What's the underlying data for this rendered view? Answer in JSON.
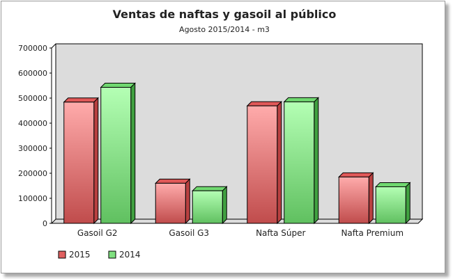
{
  "chart_data": {
    "type": "bar",
    "title": "Ventas de naftas y gasoil al público",
    "subtitle": "Agosto 2015/2014 - m3",
    "xlabel": "",
    "ylabel": "",
    "ylim": [
      0,
      700000
    ],
    "yticks": [
      "0",
      "100000",
      "200000",
      "300000",
      "400000",
      "500000",
      "600000",
      "700000"
    ],
    "categories": [
      "Gasoil G2",
      "Gasoil G3",
      "Nafta Súper",
      "Nafta Premium"
    ],
    "series": [
      {
        "name": "2015",
        "values": [
          484000,
          160000,
          469000,
          185000
        ],
        "color": "#e06060"
      },
      {
        "name": "2014",
        "values": [
          543000,
          130000,
          485000,
          146000
        ],
        "color": "#80e080"
      }
    ],
    "legend": "bottom-left",
    "grid": false
  }
}
